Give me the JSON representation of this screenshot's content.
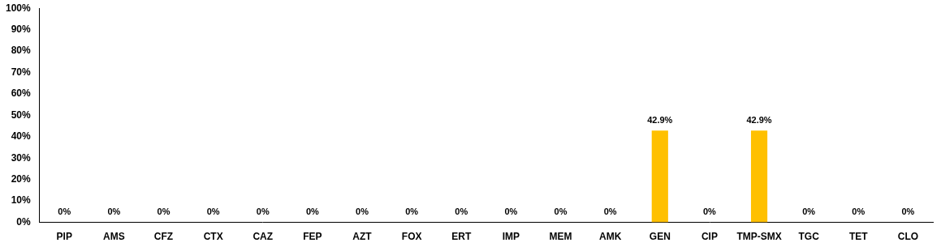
{
  "chart_data": {
    "type": "bar",
    "categories": [
      "PIP",
      "AMS",
      "CFZ",
      "CTX",
      "CAZ",
      "FEP",
      "AZT",
      "FOX",
      "ERT",
      "IMP",
      "MEM",
      "AMK",
      "GEN",
      "CIP",
      "TMP-SMX",
      "TGC",
      "TET",
      "CLO"
    ],
    "values": [
      0,
      0,
      0,
      0,
      0,
      0,
      0,
      0,
      0,
      0,
      0,
      0,
      42.9,
      0,
      42.9,
      0,
      0,
      0
    ],
    "value_labels": [
      "0%",
      "0%",
      "0%",
      "0%",
      "0%",
      "0%",
      "0%",
      "0%",
      "0%",
      "0%",
      "0%",
      "0%",
      "42.9%",
      "0%",
      "42.9%",
      "0%",
      "0%",
      "0%"
    ],
    "color": "#ffc000",
    "ylim": [
      0,
      100
    ],
    "yticks": [
      {
        "value": 0,
        "label": "0%"
      },
      {
        "value": 10,
        "label": "10%"
      },
      {
        "value": 20,
        "label": "20%"
      },
      {
        "value": 30,
        "label": "30%"
      },
      {
        "value": 40,
        "label": "40%"
      },
      {
        "value": 50,
        "label": "50%"
      },
      {
        "value": 60,
        "label": "60%"
      },
      {
        "value": 70,
        "label": "70%"
      },
      {
        "value": 80,
        "label": "80%"
      },
      {
        "value": 90,
        "label": "90%"
      },
      {
        "value": 100,
        "label": "100%"
      }
    ],
    "grid": false,
    "data_labels": true
  }
}
